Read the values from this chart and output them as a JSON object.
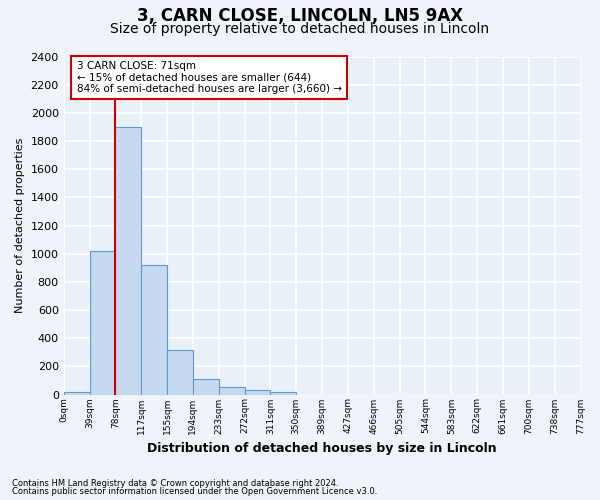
{
  "title1": "3, CARN CLOSE, LINCOLN, LN5 9AX",
  "title2": "Size of property relative to detached houses in Lincoln",
  "xlabel": "Distribution of detached houses by size in Lincoln",
  "ylabel": "Number of detached properties",
  "bin_labels": [
    "0sqm",
    "39sqm",
    "78sqm",
    "117sqm",
    "155sqm",
    "194sqm",
    "233sqm",
    "272sqm",
    "311sqm",
    "350sqm",
    "389sqm",
    "427sqm",
    "466sqm",
    "505sqm",
    "544sqm",
    "583sqm",
    "622sqm",
    "661sqm",
    "700sqm",
    "738sqm",
    "777sqm"
  ],
  "bar_values": [
    20,
    1020,
    1900,
    920,
    315,
    110,
    55,
    35,
    20,
    0,
    0,
    0,
    0,
    0,
    0,
    0,
    0,
    0,
    0,
    0
  ],
  "bar_color": "#c6d9f0",
  "bar_edge_color": "#5b9bd5",
  "ylim": [
    0,
    2400
  ],
  "yticks": [
    0,
    200,
    400,
    600,
    800,
    1000,
    1200,
    1400,
    1600,
    1800,
    2000,
    2200,
    2400
  ],
  "red_line_x": 2,
  "annotation_text": "3 CARN CLOSE: 71sqm\n← 15% of detached houses are smaller (644)\n84% of semi-detached houses are larger (3,660) →",
  "footer1": "Contains HM Land Registry data © Crown copyright and database right 2024.",
  "footer2": "Contains public sector information licensed under the Open Government Licence v3.0.",
  "fig_bg_color": "#f0f4fa",
  "plot_bg_color": "#e8f0f8",
  "grid_color": "#ffffff",
  "title1_fontsize": 12,
  "title2_fontsize": 10,
  "annotation_box_facecolor": "#ffffff",
  "annotation_box_edgecolor": "#cc0000",
  "red_line_color": "#cc0000",
  "num_bins": 20
}
